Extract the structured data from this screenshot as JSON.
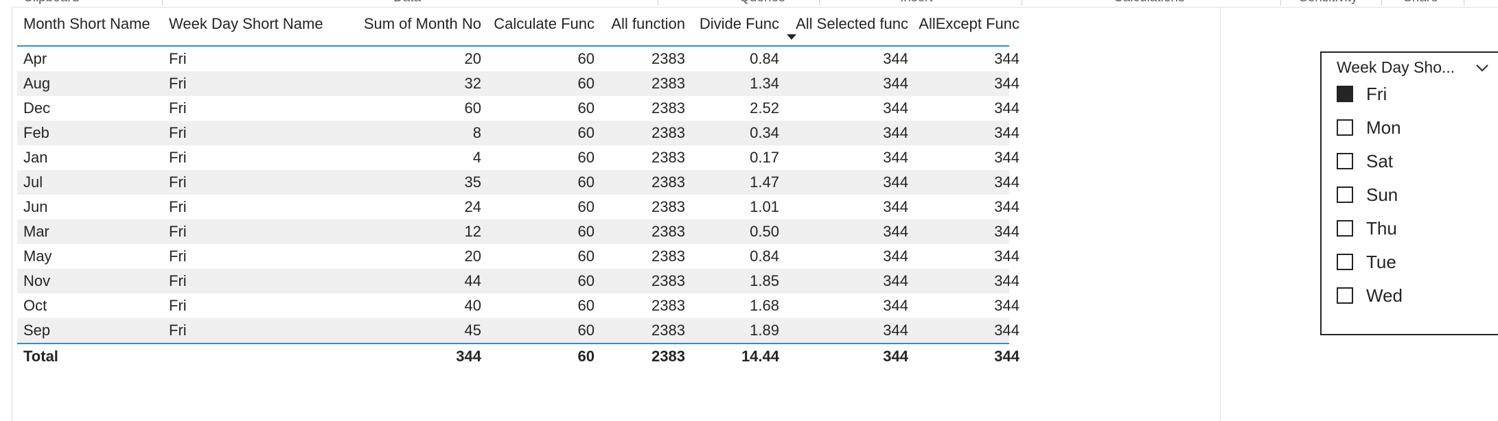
{
  "ribbon": {
    "groups": [
      "Clipboard",
      "Data",
      "Queries",
      "Insert",
      "Calculations",
      "Sensitivity",
      "Share"
    ]
  },
  "table": {
    "columns": [
      "Month Short Name",
      "Week Day Short Name",
      "Sum of Month No",
      "Calculate Func",
      "All function",
      "Divide Func",
      "All Selected func",
      "AllExcept Func"
    ],
    "sorted_column": "All Selected func",
    "rows": [
      [
        "Apr",
        "Fri",
        "20",
        "60",
        "2383",
        "0.84",
        "344",
        "344"
      ],
      [
        "Aug",
        "Fri",
        "32",
        "60",
        "2383",
        "1.34",
        "344",
        "344"
      ],
      [
        "Dec",
        "Fri",
        "60",
        "60",
        "2383",
        "2.52",
        "344",
        "344"
      ],
      [
        "Feb",
        "Fri",
        "8",
        "60",
        "2383",
        "0.34",
        "344",
        "344"
      ],
      [
        "Jan",
        "Fri",
        "4",
        "60",
        "2383",
        "0.17",
        "344",
        "344"
      ],
      [
        "Jul",
        "Fri",
        "35",
        "60",
        "2383",
        "1.47",
        "344",
        "344"
      ],
      [
        "Jun",
        "Fri",
        "24",
        "60",
        "2383",
        "1.01",
        "344",
        "344"
      ],
      [
        "Mar",
        "Fri",
        "12",
        "60",
        "2383",
        "0.50",
        "344",
        "344"
      ],
      [
        "May",
        "Fri",
        "20",
        "60",
        "2383",
        "0.84",
        "344",
        "344"
      ],
      [
        "Nov",
        "Fri",
        "44",
        "60",
        "2383",
        "1.85",
        "344",
        "344"
      ],
      [
        "Oct",
        "Fri",
        "40",
        "60",
        "2383",
        "1.68",
        "344",
        "344"
      ],
      [
        "Sep",
        "Fri",
        "45",
        "60",
        "2383",
        "1.89",
        "344",
        "344"
      ]
    ],
    "total": [
      "Total",
      "",
      "344",
      "60",
      "2383",
      "14.44",
      "344",
      "344"
    ]
  },
  "slicer": {
    "title": "Week Day Sho...",
    "items": [
      {
        "label": "Fri",
        "checked": true
      },
      {
        "label": "Mon",
        "checked": false
      },
      {
        "label": "Sat",
        "checked": false
      },
      {
        "label": "Sun",
        "checked": false
      },
      {
        "label": "Thu",
        "checked": false
      },
      {
        "label": "Tue",
        "checked": false
      },
      {
        "label": "Wed",
        "checked": false
      }
    ]
  },
  "colors": {
    "accent": "#2d8fd5",
    "alt_row": "#efefef",
    "text": "#252423"
  }
}
